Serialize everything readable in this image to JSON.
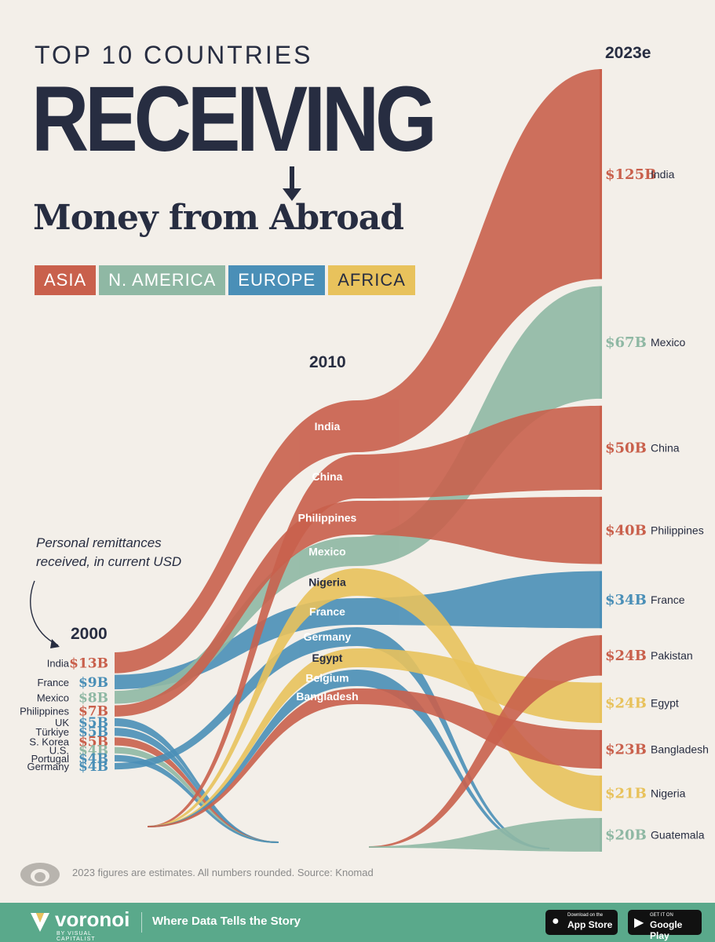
{
  "header": {
    "pre_title": "TOP 10 COUNTRIES",
    "title": "RECEIVING",
    "subtitle": "Money from Abroad"
  },
  "legend": [
    {
      "label": "ASIA",
      "color": "#c9604c"
    },
    {
      "label": "N. AMERICA",
      "color": "#8fb8a4"
    },
    {
      "label": "EUROPE",
      "color": "#4a8fb7"
    },
    {
      "label": "AFRICA",
      "color": "#e8c25c"
    }
  ],
  "note": {
    "line1": "Personal remittances",
    "line2": "received, in current USD"
  },
  "source": "2023 figures are estimates. All numbers rounded. Source: Knomad",
  "footer": {
    "brand": "voronoi",
    "brand_sub": "BY VISUAL CAPITALIST",
    "tagline": "Where Data Tells the Story",
    "app_store_small": "Download on the",
    "app_store": "App Store",
    "google_play_small": "GET IT ON",
    "google_play": "Google Play"
  },
  "chart_data": {
    "type": "bump",
    "title": "TOP 10 COUNTRIES RECEIVING Money from Abroad",
    "periods": [
      "2000",
      "2010",
      "2023e"
    ],
    "colors": {
      "Asia": "#c9604c",
      "N. America": "#8fb8a4",
      "Europe": "#4a8fb7",
      "Africa": "#e8c25c"
    },
    "columns": {
      "2000": [
        {
          "country": "India",
          "region": "Asia",
          "label": "$13B"
        },
        {
          "country": "France",
          "region": "Europe",
          "label": "$9B"
        },
        {
          "country": "Mexico",
          "region": "N. America",
          "label": "$8B"
        },
        {
          "country": "Philippines",
          "region": "Asia",
          "label": "$7B"
        },
        {
          "country": "UK",
          "region": "Europe",
          "label": "$5B"
        },
        {
          "country": "Türkiye",
          "region": "Europe",
          "label": "$5B"
        },
        {
          "country": "S. Korea",
          "region": "Asia",
          "label": "$5B"
        },
        {
          "country": "U.S.",
          "region": "N. America",
          "label": "$4B"
        },
        {
          "country": "Portugal",
          "region": "Europe",
          "label": "$4B"
        },
        {
          "country": "Germany",
          "region": "Europe",
          "label": "$4B"
        }
      ],
      "2010": [
        {
          "country": "India",
          "region": "Asia"
        },
        {
          "country": "China",
          "region": "Asia"
        },
        {
          "country": "Philippines",
          "region": "Asia"
        },
        {
          "country": "Mexico",
          "region": "N. America"
        },
        {
          "country": "Nigeria",
          "region": "Africa"
        },
        {
          "country": "France",
          "region": "Europe"
        },
        {
          "country": "Germany",
          "region": "Europe"
        },
        {
          "country": "Egypt",
          "region": "Africa"
        },
        {
          "country": "Belgium",
          "region": "Europe"
        },
        {
          "country": "Bangladesh",
          "region": "Asia"
        }
      ],
      "2023e": [
        {
          "country": "India",
          "region": "Asia",
          "label": "$125B"
        },
        {
          "country": "Mexico",
          "region": "N. America",
          "label": "$67B"
        },
        {
          "country": "China",
          "region": "Asia",
          "label": "$50B"
        },
        {
          "country": "Philippines",
          "region": "Asia",
          "label": "$40B"
        },
        {
          "country": "France",
          "region": "Europe",
          "label": "$34B"
        },
        {
          "country": "Pakistan",
          "region": "Asia",
          "label": "$24B"
        },
        {
          "country": "Egypt",
          "region": "Africa",
          "label": "$24B"
        },
        {
          "country": "Bangladesh",
          "region": "Asia",
          "label": "$23B"
        },
        {
          "country": "Nigeria",
          "region": "Africa",
          "label": "$21B"
        },
        {
          "country": "Guatemala",
          "region": "N. America",
          "label": "$20B"
        }
      ]
    }
  }
}
